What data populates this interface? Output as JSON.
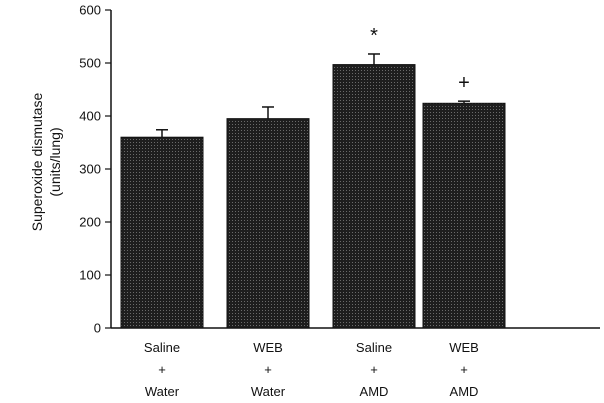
{
  "chart_data": {
    "type": "bar",
    "title": "",
    "xlabel": "",
    "ylabel_lines": [
      "Superoxide dismutase",
      "(units/lung)"
    ],
    "ylim": [
      0,
      600
    ],
    "yticks": [
      0,
      100,
      200,
      300,
      400,
      500,
      600
    ],
    "categories": [
      [
        "Saline",
        "+",
        "Water"
      ],
      [
        "WEB",
        "+",
        "Water"
      ],
      [
        "Saline",
        "+",
        "AMD"
      ],
      [
        "WEB",
        "+",
        "AMD"
      ]
    ],
    "values": [
      360,
      395,
      497,
      424
    ],
    "errors": [
      14,
      22,
      20,
      4
    ],
    "annotations": [
      "",
      "",
      "*",
      "+"
    ],
    "bar_color": "#1e1e1e",
    "grid": false
  }
}
